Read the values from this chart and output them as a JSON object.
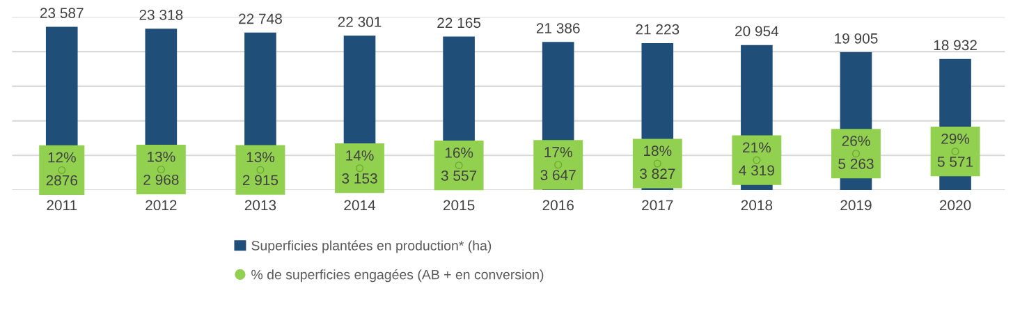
{
  "chart_data": {
    "type": "bar",
    "categories": [
      "2011",
      "2012",
      "2013",
      "2014",
      "2015",
      "2016",
      "2017",
      "2018",
      "2019",
      "2020"
    ],
    "series": [
      {
        "name": "Superficies plantées en production* (ha)",
        "color": "#1f4e79",
        "values": [
          23587,
          23318,
          22748,
          22301,
          22165,
          21386,
          21223,
          20954,
          19905,
          18932
        ],
        "value_labels": [
          "23 587",
          "23 318",
          "22 748",
          "22 301",
          "22 165",
          "21 386",
          "21 223",
          "20 954",
          "19 905",
          "18 932"
        ]
      },
      {
        "name": "% de superficies engagées (AB + en conversion)",
        "type": "scatter",
        "marker": "circle",
        "color": "#92d050",
        "values": [
          2876,
          2968,
          2915,
          3153,
          3557,
          3647,
          3827,
          4319,
          5263,
          5571
        ],
        "value_labels": [
          "12%\n2876",
          "13%\n2 968",
          "13%\n2 915",
          "14%\n3 153",
          "16%\n3 557",
          "17%\n3 647",
          "18%\n3 827",
          "21%\n4 319",
          "26%\n5 263",
          "29%\n5 571"
        ]
      }
    ],
    "ylim": [
      0,
      25000
    ],
    "yticks": [
      {
        "value": 0,
        "label": null
      },
      {
        "value": 5000,
        "label": null
      },
      {
        "value": 10000,
        "label": null
      },
      {
        "value": 15000,
        "label": null
      },
      {
        "value": 20000,
        "label": null
      },
      {
        "value": 25000,
        "label": null
      }
    ],
    "tick_labels": "x",
    "grid": "y",
    "legend": "bottom"
  }
}
